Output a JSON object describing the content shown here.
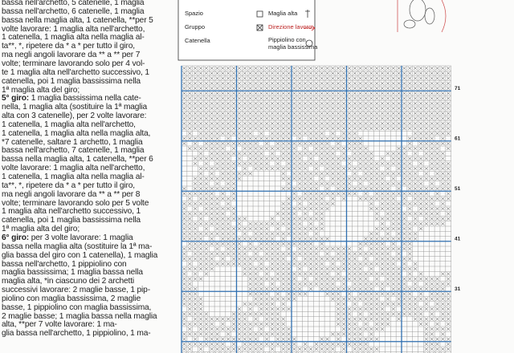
{
  "instructions": {
    "paragraphs": [
      {
        "lines": [
          "bassa nell'archetto, 5 catenelle, 1 maglia",
          "bassa nell'archetto, 6 catenelle, 1 maglia",
          "bassa nella maglia alta, 1 catenella, **per 5",
          "volte lavorare: 1 maglia alta nell'archetto,",
          "1 catenella, 1 maglia alta nella maglia al-",
          "ta**, *, ripetere da * a * per tutto il giro,",
          "ma negli angoli lavorare da ** a ** per 7",
          "volte; terminare lavorando solo per 4 vol-",
          "te 1 maglia alta nell'archetto successivo, 1",
          "catenella, poi 1 maglia bassissima nella",
          "1ª maglia alta del giro;"
        ]
      },
      {
        "lead": "5° giro:",
        "lines": [
          " 1 maglia bassissima nella cate-",
          "nella, 1 maglia alta (sostituire la 1ª maglia",
          "alta con 3 catenelle), per 2 volte lavorare:",
          "1 catenella, 1 maglia alta nell'archetto,",
          "1 catenella, 1 maglia alta nella maglia alta,",
          "*7 catenelle, saltare 1 archetto, 1 maglia",
          "bassa nell'archetto, 7 catenelle, 1 maglia",
          "bassa nella maglia alta, 1 catenella, **per 6",
          "volte lavorare: 1 maglia alta nell'archetto,",
          "1 catenella, 1 maglia alta nella maglia al-",
          "ta**, *, ripetere da * a * per tutto il giro,",
          "ma negli angoli lavorare da ** a ** per 8",
          "volte; terminare lavorando solo per 5 volte",
          "1 maglia alta nell'archetto successivo, 1",
          "catenella, poi 1 maglia bassissima nella",
          "1ª maglia alta del giro;"
        ]
      },
      {
        "lead": "6° giro:",
        "lines": [
          " per 3 volte lavorare: 1 maglia",
          "bassa nella maglia alta (sostituire la 1ª ma-",
          "glia bassa del giro con 1 catenella), 1 maglia",
          "bassa nell'archetto, 1 pippiolino con",
          "maglia bassissima; 1 maglia bassa nella",
          "maglia alta, *in ciascuno dei 2 archetti",
          "successivi lavorare: 2 maglie basse, 1 pip-",
          "piolino con maglia bassissima, 2 maglie",
          "basse, 1 pippiolino con maglia bassissima,",
          "2 maglie basse; 1 maglia bassa nella maglia",
          "alta, **per 7 volte lavorare: 1 ma-",
          "glia bassa nell'archetto, 1 pippiolino, 1 ma-"
        ]
      }
    ]
  },
  "legend": {
    "left": [
      "Spazio",
      "Gruppo",
      "Catenella"
    ],
    "right": [
      "Maglia alta",
      "Direzione lavoro",
      "Pippiolino con maglia bassissima"
    ]
  },
  "chart": {
    "row_labels": [
      "71",
      "61",
      "51",
      "41",
      "31"
    ]
  }
}
